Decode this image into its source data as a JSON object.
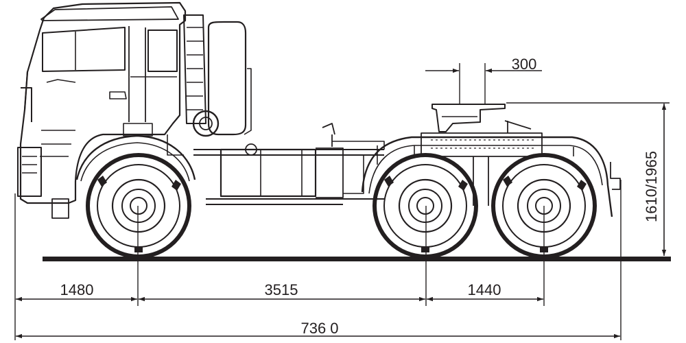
{
  "dimensions": {
    "overhang_front": "1480",
    "wheelbase_front_to_mid": "3515",
    "wheelbase_mid_to_rear": "1440",
    "overall_length": "736 0",
    "fifth_wheel_offset": "300",
    "fifth_wheel_height": "1610/1965"
  },
  "colors": {
    "ink": "#231f20",
    "background": "#ffffff"
  }
}
